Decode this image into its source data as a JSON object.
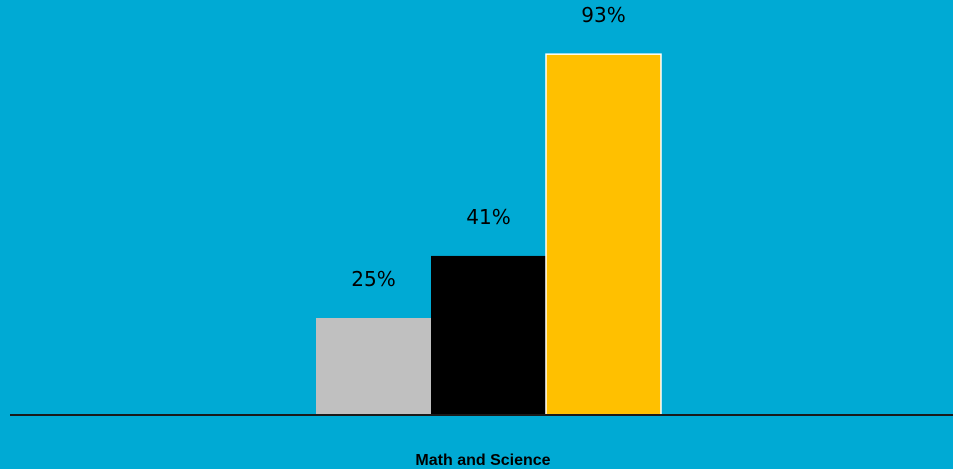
{
  "colors": {
    "background": "#00aad4",
    "axis": "#1a1a1a"
  },
  "chart_data": {
    "type": "bar",
    "categories": [
      "Math and Science"
    ],
    "series": [
      {
        "values": [
          25
        ],
        "color": "#c0c0c0"
      },
      {
        "values": [
          41
        ],
        "color": "#000000"
      },
      {
        "values": [
          93
        ],
        "color": "#ffc000"
      }
    ],
    "data_labels": [
      "25%",
      "41%",
      "93%"
    ],
    "title": "",
    "xlabel": "",
    "ylabel": "",
    "ylim": [
      0,
      100
    ],
    "grid": false,
    "legend": "none"
  }
}
